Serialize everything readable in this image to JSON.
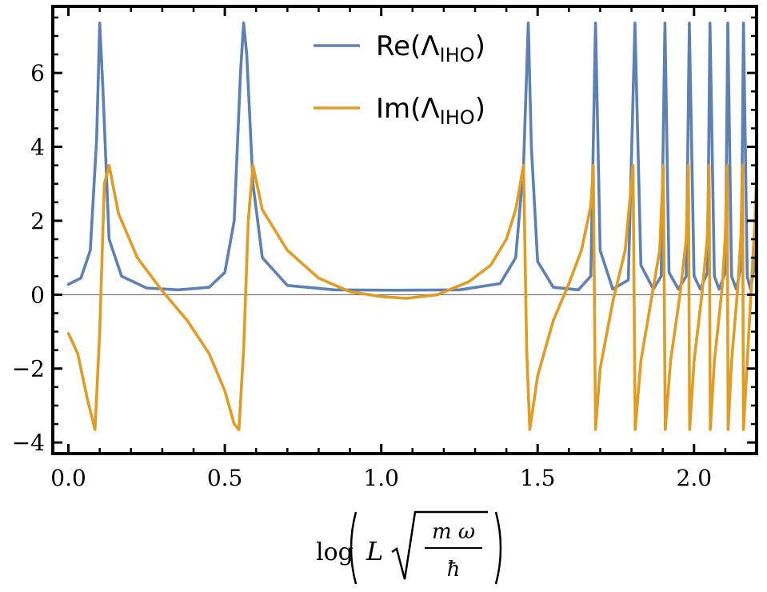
{
  "chart_data": {
    "type": "line",
    "title": "",
    "xlabel": {
      "fn": "log",
      "var": "L",
      "num": "m ω",
      "den": "ħ"
    },
    "ylabel": "",
    "xlim": [
      -0.05,
      2.2
    ],
    "ylim": [
      -4.3,
      7.8
    ],
    "x_ticks": [
      0.0,
      0.5,
      1.0,
      1.5,
      2.0
    ],
    "x_tick_labels": [
      "0.0",
      "0.5",
      "1.0",
      "1.5",
      "2.0"
    ],
    "y_ticks": [
      -4,
      -2,
      0,
      2,
      4,
      6
    ],
    "y_tick_labels": [
      "−4",
      "−2",
      "0",
      "2",
      "4",
      "6"
    ],
    "grid": false,
    "legend_position": "top-center",
    "zero_line": true,
    "series": [
      {
        "name": "Re(ΛIHO)",
        "name_base": "Re(Λ",
        "name_sub": "IHO",
        "name_tail": ")",
        "color": "#5E81B5",
        "peak_max": 7.4,
        "baseline": 0.13,
        "points": [
          [
            0.0,
            0.28
          ],
          [
            0.04,
            0.45
          ],
          [
            0.07,
            1.2
          ],
          [
            0.09,
            4.2
          ],
          [
            0.1,
            7.35
          ],
          [
            0.11,
            5.6
          ],
          [
            0.13,
            1.5
          ],
          [
            0.17,
            0.5
          ],
          [
            0.25,
            0.18
          ],
          [
            0.35,
            0.13
          ],
          [
            0.45,
            0.2
          ],
          [
            0.5,
            0.6
          ],
          [
            0.53,
            2.0
          ],
          [
            0.55,
            6.0
          ],
          [
            0.56,
            7.35
          ],
          [
            0.57,
            6.5
          ],
          [
            0.59,
            3.0
          ],
          [
            0.62,
            1.0
          ],
          [
            0.7,
            0.25
          ],
          [
            0.85,
            0.13
          ],
          [
            1.05,
            0.12
          ],
          [
            1.25,
            0.13
          ],
          [
            1.38,
            0.3
          ],
          [
            1.43,
            1.0
          ],
          [
            1.455,
            3.5
          ],
          [
            1.47,
            7.35
          ],
          [
            1.48,
            4.0
          ],
          [
            1.5,
            0.9
          ],
          [
            1.55,
            0.2
          ],
          [
            1.63,
            0.13
          ],
          [
            1.67,
            0.5
          ],
          [
            1.685,
            7.35
          ],
          [
            1.7,
            1.2
          ],
          [
            1.74,
            0.15
          ],
          [
            1.79,
            0.4
          ],
          [
            1.811,
            7.35
          ],
          [
            1.83,
            0.8
          ],
          [
            1.87,
            0.15
          ],
          [
            1.895,
            0.5
          ],
          [
            1.907,
            7.35
          ],
          [
            1.92,
            0.6
          ],
          [
            1.95,
            0.15
          ],
          [
            1.975,
            0.5
          ],
          [
            1.985,
            7.35
          ],
          [
            2.0,
            0.5
          ],
          [
            2.02,
            0.15
          ],
          [
            2.043,
            0.6
          ],
          [
            2.051,
            7.35
          ],
          [
            2.065,
            0.5
          ],
          [
            2.08,
            0.15
          ],
          [
            2.1,
            0.6
          ],
          [
            2.108,
            7.35
          ],
          [
            2.12,
            0.5
          ],
          [
            2.135,
            0.15
          ],
          [
            2.151,
            0.8
          ],
          [
            2.158,
            7.35
          ],
          [
            2.17,
            0.5
          ],
          [
            2.18,
            0.15
          ],
          [
            2.19,
            0.6
          ],
          [
            2.2,
            2.5
          ]
        ]
      },
      {
        "name": "Im(ΛIHO)",
        "name_base": "Im(Λ",
        "name_sub": "IHO",
        "name_tail": ")",
        "color": "#E19C24",
        "peak_max": 3.5,
        "peak_min": -3.65,
        "points": [
          [
            0.0,
            -1.05
          ],
          [
            0.03,
            -1.6
          ],
          [
            0.06,
            -2.8
          ],
          [
            0.085,
            -3.65
          ],
          [
            0.1,
            -1.0
          ],
          [
            0.115,
            3.0
          ],
          [
            0.13,
            3.5
          ],
          [
            0.16,
            2.2
          ],
          [
            0.22,
            1.0
          ],
          [
            0.3,
            0.1
          ],
          [
            0.38,
            -0.7
          ],
          [
            0.45,
            -1.6
          ],
          [
            0.5,
            -2.6
          ],
          [
            0.53,
            -3.5
          ],
          [
            0.545,
            -3.65
          ],
          [
            0.56,
            -1.5
          ],
          [
            0.575,
            2.0
          ],
          [
            0.59,
            3.5
          ],
          [
            0.62,
            2.3
          ],
          [
            0.7,
            1.2
          ],
          [
            0.8,
            0.45
          ],
          [
            0.9,
            0.08
          ],
          [
            1.0,
            -0.05
          ],
          [
            1.08,
            -0.1
          ],
          [
            1.18,
            0.0
          ],
          [
            1.28,
            0.35
          ],
          [
            1.35,
            0.8
          ],
          [
            1.4,
            1.5
          ],
          [
            1.43,
            2.3
          ],
          [
            1.455,
            3.5
          ],
          [
            1.465,
            -1.5
          ],
          [
            1.475,
            -3.65
          ],
          [
            1.5,
            -2.2
          ],
          [
            1.55,
            -0.7
          ],
          [
            1.6,
            0.3
          ],
          [
            1.64,
            1.2
          ],
          [
            1.67,
            2.4
          ],
          [
            1.678,
            3.5
          ],
          [
            1.685,
            -3.65
          ],
          [
            1.7,
            -2.0
          ],
          [
            1.74,
            -0.2
          ],
          [
            1.78,
            1.2
          ],
          [
            1.805,
            3.5
          ],
          [
            1.812,
            -3.65
          ],
          [
            1.83,
            -1.8
          ],
          [
            1.86,
            -0.3
          ],
          [
            1.89,
            1.2
          ],
          [
            1.902,
            3.5
          ],
          [
            1.908,
            -3.65
          ],
          [
            1.925,
            -1.8
          ],
          [
            1.955,
            0.0
          ],
          [
            1.975,
            1.5
          ],
          [
            1.982,
            3.5
          ],
          [
            1.986,
            -3.65
          ],
          [
            2.0,
            -1.8
          ],
          [
            2.025,
            0.0
          ],
          [
            2.042,
            1.5
          ],
          [
            2.048,
            3.5
          ],
          [
            2.052,
            -3.65
          ],
          [
            2.065,
            -1.8
          ],
          [
            2.09,
            0.2
          ],
          [
            2.1,
            1.6
          ],
          [
            2.106,
            3.5
          ],
          [
            2.109,
            -3.65
          ],
          [
            2.12,
            -1.8
          ],
          [
            2.14,
            0.2
          ],
          [
            2.15,
            1.6
          ],
          [
            2.155,
            3.5
          ],
          [
            2.158,
            -3.65
          ],
          [
            2.17,
            -1.8
          ],
          [
            2.185,
            0.5
          ],
          [
            2.195,
            2.0
          ],
          [
            2.2,
            3.35
          ]
        ]
      }
    ]
  }
}
